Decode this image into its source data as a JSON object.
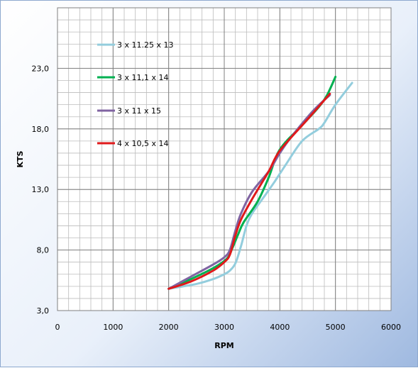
{
  "chart_data": {
    "type": "line",
    "title": "",
    "xlabel": "RPM",
    "ylabel": "KTS",
    "xlim": [
      0,
      6000
    ],
    "ylim": [
      3,
      28
    ],
    "x_ticks": [
      0,
      1000,
      2000,
      3000,
      4000,
      5000,
      6000
    ],
    "x_tick_labels": [
      "0",
      "1000",
      "2000",
      "3000",
      "4000",
      "5000",
      "6000"
    ],
    "y_ticks": [
      3,
      8,
      13,
      18,
      23
    ],
    "y_tick_labels": [
      "3,0",
      "8,0",
      "13,0",
      "18,0",
      "23,0"
    ],
    "x_minor_step": 200,
    "y_minor_step": 1,
    "grid": true,
    "legend_position": "upper-left-inside",
    "series": [
      {
        "name": "3 x 11.25 x 13",
        "color": "#93cddd",
        "x": [
          2000,
          2500,
          2800,
          3000,
          3100,
          3200,
          3300,
          3400,
          3500,
          3700,
          3900,
          4100,
          4400,
          4700,
          4800,
          5000,
          5300
        ],
        "y": [
          4.8,
          5.2,
          5.6,
          6.0,
          6.3,
          6.9,
          8.3,
          10.0,
          11.0,
          12.3,
          13.6,
          15.0,
          17.0,
          18.0,
          18.5,
          20.0,
          21.8
        ]
      },
      {
        "name": "3 x 11,1 x 14",
        "color": "#00b050",
        "x": [
          2000,
          2400,
          2800,
          3050,
          3150,
          3250,
          3350,
          3600,
          3800,
          4000,
          4400,
          4700,
          4850,
          5000
        ],
        "y": [
          4.8,
          5.6,
          6.5,
          7.3,
          8.2,
          9.3,
          10.3,
          12.0,
          14.0,
          16.3,
          18.3,
          19.8,
          20.8,
          22.3
        ]
      },
      {
        "name": "3 x 11 x 15",
        "color": "#8064a2",
        "x": [
          2000,
          2400,
          2800,
          3000,
          3100,
          3200,
          3300,
          3500,
          3800,
          4000,
          4200,
          4600,
          4900
        ],
        "y": [
          4.8,
          5.8,
          6.8,
          7.4,
          8.0,
          9.6,
          11.0,
          12.8,
          14.5,
          16.0,
          17.3,
          19.5,
          20.8
        ]
      },
      {
        "name": "4 x 10,5 x 14",
        "color": "#e0191b",
        "x": [
          2000,
          2400,
          2800,
          3000,
          3100,
          3200,
          3300,
          3500,
          3800,
          4000,
          4500,
          4900
        ],
        "y": [
          4.8,
          5.4,
          6.3,
          7.0,
          7.6,
          9.2,
          10.5,
          12.2,
          14.5,
          16.2,
          18.8,
          20.9
        ]
      }
    ]
  }
}
